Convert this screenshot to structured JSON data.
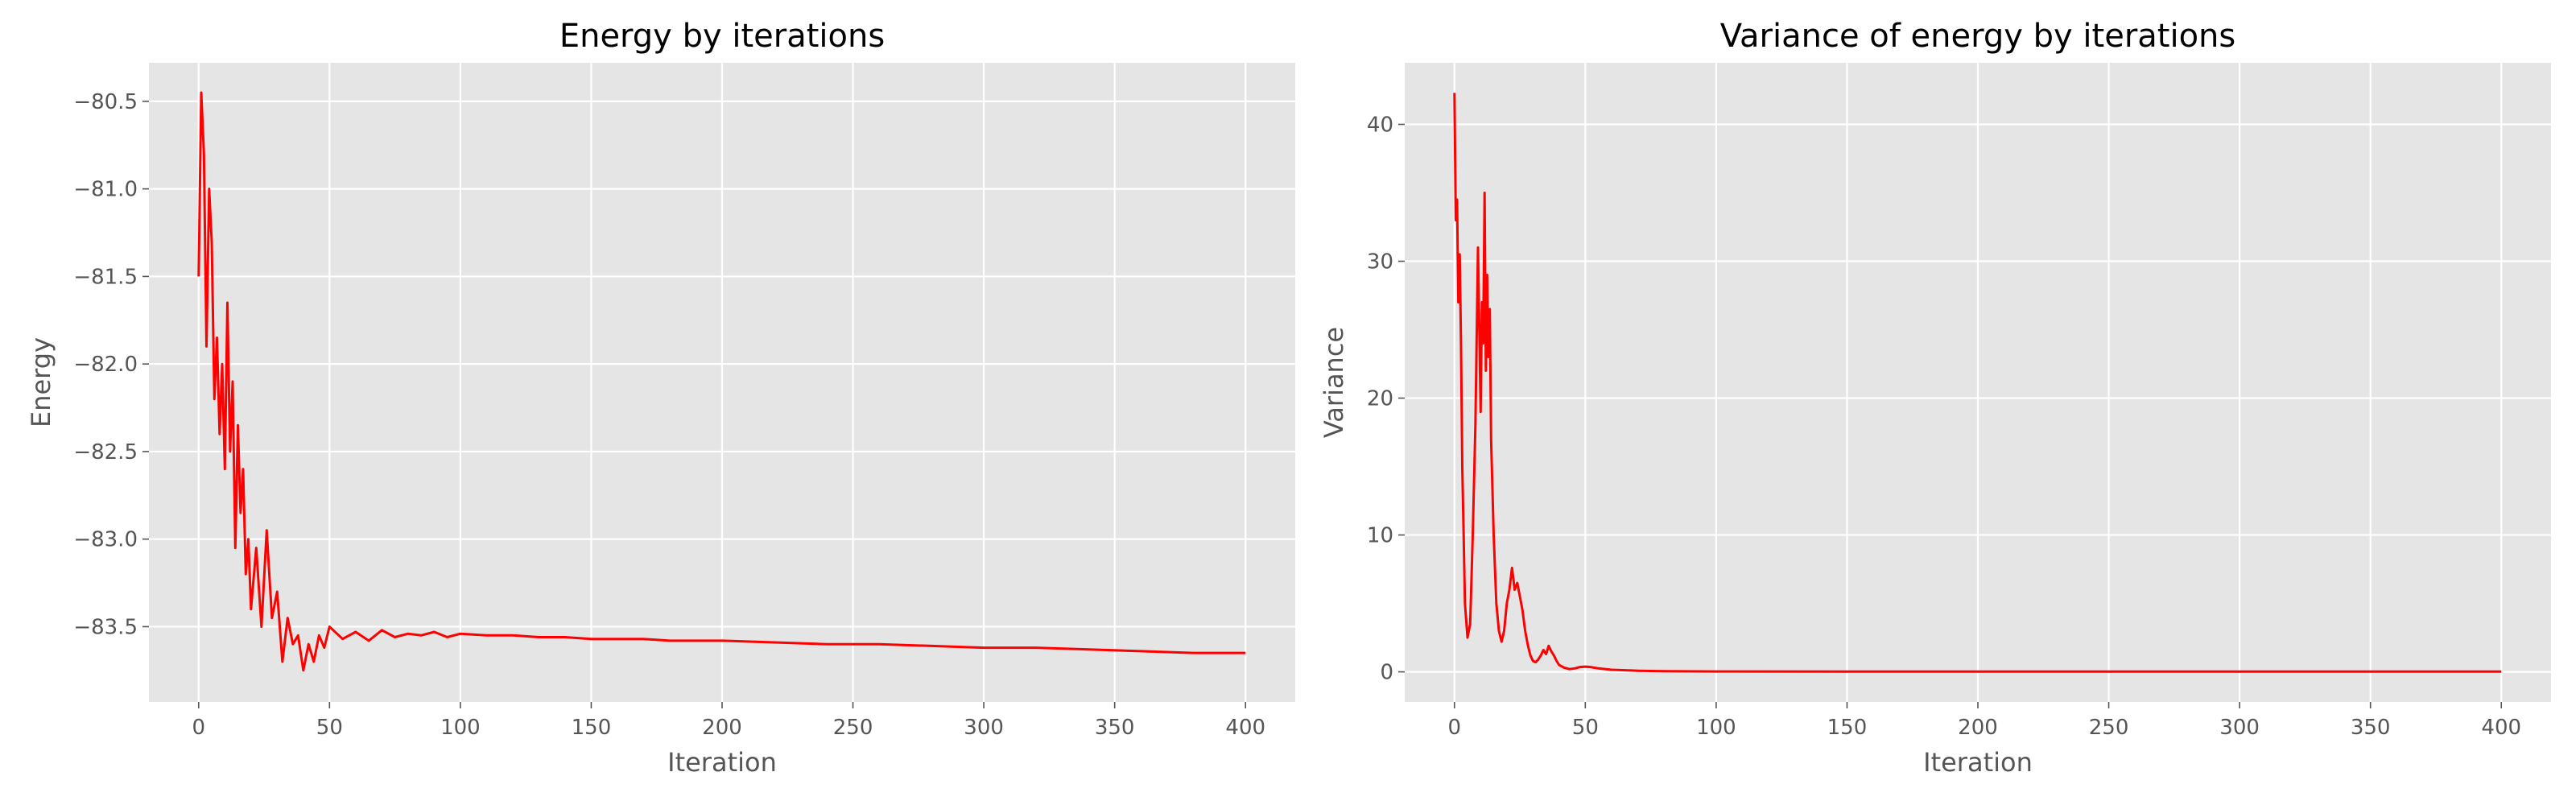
{
  "chart_data": [
    {
      "type": "line",
      "title": "Energy by iterations",
      "xlabel": "Iteration",
      "ylabel": "Energy",
      "xlim": [
        -19,
        419
      ],
      "ylim": [
        -83.93,
        -80.28
      ],
      "xticks": [
        0,
        50,
        100,
        150,
        200,
        250,
        300,
        350,
        400
      ],
      "yticks": [
        -80.5,
        -81.0,
        -81.5,
        -82.0,
        -82.5,
        -83.0,
        -83.5
      ],
      "ytick_labels": [
        "−80.5",
        "−81.0",
        "−81.5",
        "−82.0",
        "−82.5",
        "−83.0",
        "−83.5"
      ],
      "grid": true,
      "color": "#ff0000",
      "series": [
        {
          "x": [
            0,
            1,
            2,
            3,
            4,
            5,
            6,
            7,
            8,
            9,
            10,
            11,
            12,
            13,
            14,
            15,
            16,
            17,
            18,
            19,
            20,
            22,
            24,
            26,
            28,
            30,
            32,
            34,
            36,
            38,
            40,
            42,
            44,
            46,
            48,
            50,
            55,
            60,
            65,
            70,
            75,
            80,
            85,
            90,
            95,
            100,
            110,
            120,
            130,
            140,
            150,
            160,
            170,
            180,
            190,
            200,
            220,
            240,
            260,
            280,
            300,
            320,
            340,
            360,
            380,
            400
          ],
          "values": [
            -81.5,
            -80.45,
            -80.8,
            -81.9,
            -81.0,
            -81.3,
            -82.2,
            -81.85,
            -82.4,
            -82.0,
            -82.6,
            -81.65,
            -82.5,
            -82.1,
            -83.05,
            -82.35,
            -82.85,
            -82.6,
            -83.2,
            -83.0,
            -83.4,
            -83.05,
            -83.5,
            -82.95,
            -83.45,
            -83.3,
            -83.7,
            -83.45,
            -83.6,
            -83.55,
            -83.75,
            -83.6,
            -83.7,
            -83.55,
            -83.62,
            -83.5,
            -83.57,
            -83.53,
            -83.58,
            -83.52,
            -83.56,
            -83.54,
            -83.55,
            -83.53,
            -83.56,
            -83.54,
            -83.55,
            -83.55,
            -83.56,
            -83.56,
            -83.57,
            -83.57,
            -83.57,
            -83.58,
            -83.58,
            -83.58,
            -83.59,
            -83.6,
            -83.6,
            -83.61,
            -83.62,
            -83.62,
            -83.63,
            -83.64,
            -83.65,
            -83.65
          ]
        }
      ]
    },
    {
      "type": "line",
      "title": "Variance of energy by iterations",
      "xlabel": "Iteration",
      "ylabel": "Variance",
      "xlim": [
        -19,
        419
      ],
      "ylim": [
        -2.2,
        44.5
      ],
      "xticks": [
        0,
        50,
        100,
        150,
        200,
        250,
        300,
        350,
        400
      ],
      "yticks": [
        0,
        10,
        20,
        30,
        40
      ],
      "ytick_labels": [
        "0",
        "10",
        "20",
        "30",
        "40"
      ],
      "grid": true,
      "color": "#ff0000",
      "series": [
        {
          "x": [
            0,
            0.5,
            1,
            1.5,
            2,
            2.5,
            3,
            3.5,
            4,
            5,
            6,
            7,
            8,
            9,
            10,
            10.5,
            11,
            11.5,
            12,
            12.5,
            13,
            13.5,
            14,
            15,
            16,
            17,
            18,
            19,
            20,
            21,
            22,
            23,
            24,
            25,
            26,
            27,
            28,
            29,
            30,
            31,
            32,
            33,
            34,
            35,
            36,
            37,
            38,
            39,
            40,
            42,
            44,
            46,
            48,
            50,
            52,
            55,
            60,
            70,
            80,
            100,
            150,
            200,
            250,
            300,
            350,
            400
          ],
          "values": [
            42.3,
            33.0,
            34.5,
            27.0,
            30.5,
            24.0,
            15.0,
            10.0,
            5.0,
            2.5,
            3.5,
            10.0,
            18.0,
            31.0,
            19.0,
            27.0,
            24.0,
            35.0,
            22.0,
            29.0,
            23.0,
            26.5,
            17.0,
            10.0,
            5.0,
            3.0,
            2.2,
            3.0,
            5.0,
            6.0,
            7.6,
            6.0,
            6.5,
            5.5,
            4.5,
            3.0,
            2.0,
            1.2,
            0.8,
            0.7,
            0.9,
            1.2,
            1.6,
            1.3,
            1.9,
            1.5,
            1.2,
            0.8,
            0.5,
            0.3,
            0.2,
            0.25,
            0.35,
            0.38,
            0.35,
            0.25,
            0.15,
            0.08,
            0.05,
            0.03,
            0.02,
            0.02,
            0.02,
            0.02,
            0.02,
            0.02
          ]
        }
      ]
    }
  ]
}
